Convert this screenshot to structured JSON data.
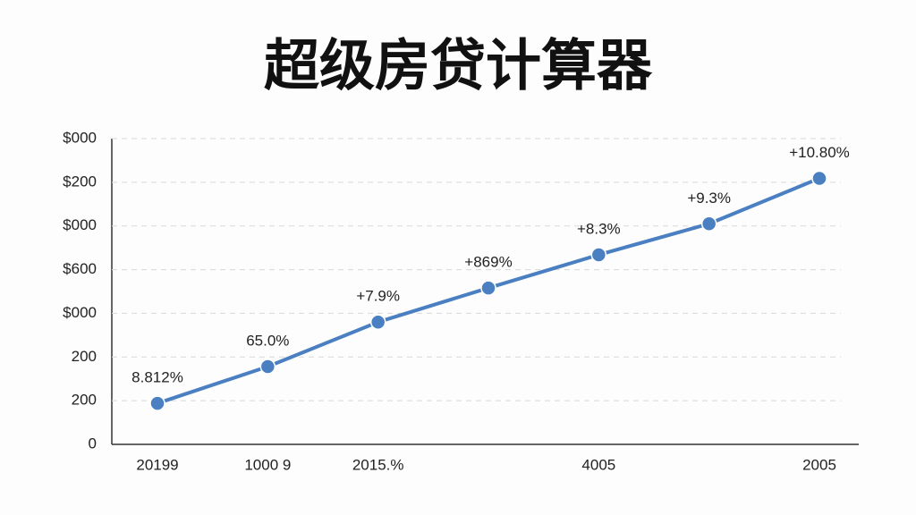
{
  "chart_data": {
    "type": "line",
    "title": "超级房贷计算器",
    "categories": [
      "20199",
      "1000 9",
      "2015.%",
      null,
      "4005",
      null,
      "2005"
    ],
    "series": [
      {
        "color": "#4a7fc1",
        "values": [
          0.94,
          1.78,
          2.8,
          3.58,
          4.34,
          5.05,
          6.09
        ]
      }
    ],
    "annotations": [
      "8.812%",
      "65.0%",
      "+7.9%",
      "+869%",
      "+8.3%",
      "+9.3%",
      "+10.80%"
    ],
    "ylim": [
      0,
      7
    ],
    "yticks": [
      0,
      {
        "value": 1,
        "label": "200"
      },
      {
        "value": 2,
        "label": "200"
      },
      {
        "value": 3,
        "label": "$000"
      },
      {
        "value": 4,
        "label": "$600"
      },
      {
        "value": 5,
        "label": "$000"
      },
      {
        "value": 6,
        "label": "$200"
      },
      {
        "value": 7,
        "label": "$000"
      }
    ],
    "grid": true
  }
}
